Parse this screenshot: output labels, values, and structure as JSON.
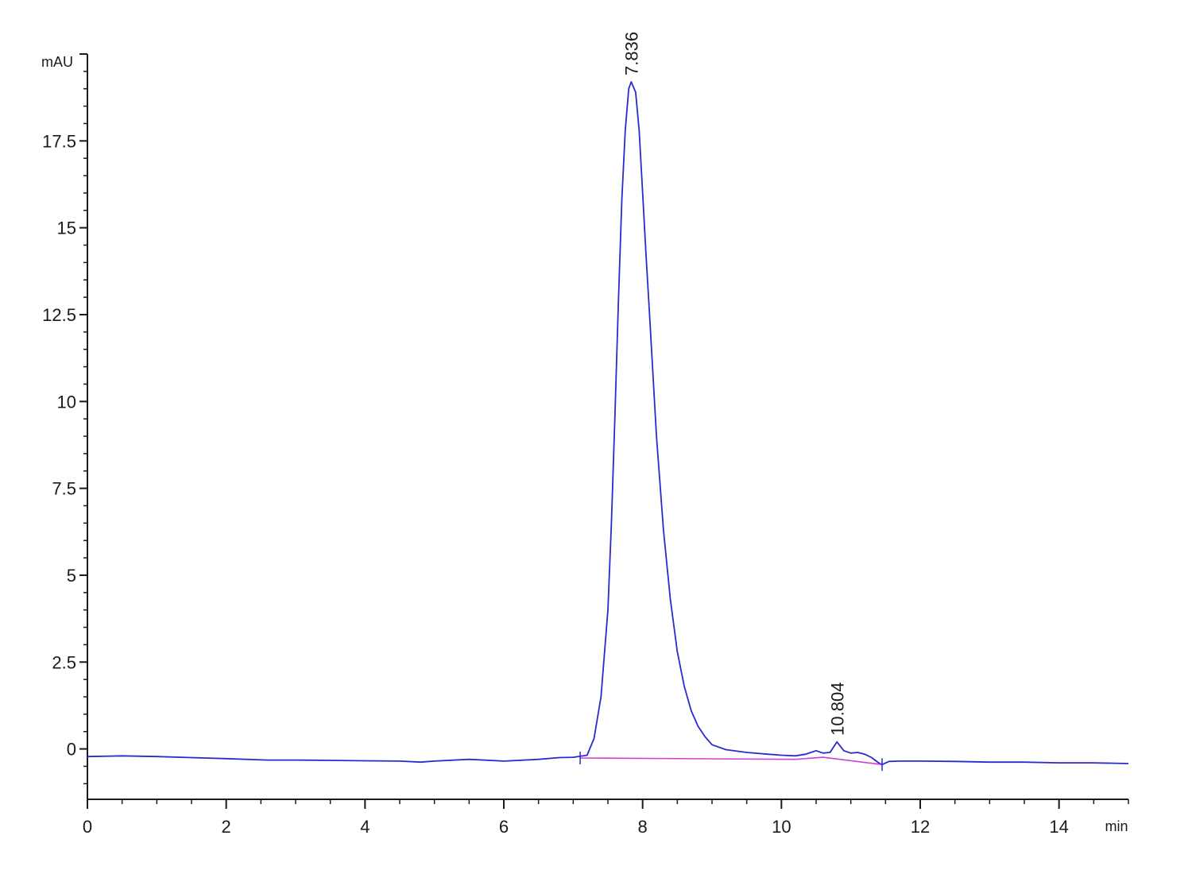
{
  "chart_data": {
    "type": "line",
    "ylabel": "mAU",
    "xlabel": "min",
    "xlim": [
      0,
      15
    ],
    "ylim": [
      -1.45,
      20
    ],
    "grid": false,
    "xticks": [
      0,
      2,
      4,
      6,
      8,
      10,
      12,
      14
    ],
    "xtick_labels": [
      "0",
      "2",
      "4",
      "6",
      "8",
      "10",
      "12",
      "14"
    ],
    "yticks": [
      0,
      2.5,
      5,
      7.5,
      10,
      12.5,
      15,
      17.5
    ],
    "ytick_labels": [
      "0",
      "2.5",
      "5",
      "7.5",
      "10",
      "12.5",
      "15",
      "17.5"
    ],
    "colors": {
      "signal": "#2a2ad0",
      "baseline": "#d040d0",
      "axis": "#1a1a1a"
    },
    "series": [
      {
        "role": "signal",
        "x": [
          0,
          0.5,
          1.0,
          1.5,
          2.0,
          2.6,
          3.0,
          3.5,
          4.0,
          4.5,
          4.8,
          5.0,
          5.5,
          6.0,
          6.5,
          6.8,
          7.0,
          7.2,
          7.3,
          7.4,
          7.5,
          7.55,
          7.6,
          7.65,
          7.7,
          7.75,
          7.8,
          7.836,
          7.9,
          7.95,
          8.0,
          8.05,
          8.1,
          8.2,
          8.3,
          8.4,
          8.5,
          8.6,
          8.7,
          8.8,
          8.9,
          9.0,
          9.2,
          9.5,
          9.8,
          10.0,
          10.2,
          10.35,
          10.5,
          10.6,
          10.7,
          10.8,
          10.9,
          11.0,
          11.1,
          11.2,
          11.3,
          11.4,
          11.45,
          11.55,
          11.7,
          12.0,
          12.5,
          13.0,
          13.5,
          14.0,
          14.5,
          15.0
        ],
        "y": [
          -0.22,
          -0.2,
          -0.22,
          -0.25,
          -0.28,
          -0.32,
          -0.32,
          -0.33,
          -0.34,
          -0.35,
          -0.38,
          -0.35,
          -0.3,
          -0.35,
          -0.3,
          -0.25,
          -0.24,
          -0.18,
          0.3,
          1.5,
          4.0,
          6.5,
          9.5,
          12.8,
          15.8,
          17.8,
          19.0,
          19.2,
          18.9,
          17.8,
          16.0,
          14.2,
          12.5,
          9.0,
          6.3,
          4.3,
          2.8,
          1.8,
          1.1,
          0.65,
          0.35,
          0.12,
          -0.02,
          -0.1,
          -0.15,
          -0.18,
          -0.2,
          -0.15,
          -0.05,
          -0.12,
          -0.1,
          0.2,
          -0.05,
          -0.12,
          -0.1,
          -0.15,
          -0.25,
          -0.4,
          -0.45,
          -0.36,
          -0.35,
          -0.35,
          -0.36,
          -0.38,
          -0.38,
          -0.4,
          -0.4,
          -0.42
        ]
      },
      {
        "role": "baseline",
        "x": [
          7.1,
          10.2,
          10.6,
          11.45
        ],
        "y": [
          -0.26,
          -0.3,
          -0.24,
          -0.45
        ]
      }
    ],
    "peak_labels": [
      "7.836",
      "10.804"
    ],
    "peak_label_x": [
      7.836,
      10.804
    ],
    "peak_label_y": [
      19.2,
      0.2
    ]
  }
}
